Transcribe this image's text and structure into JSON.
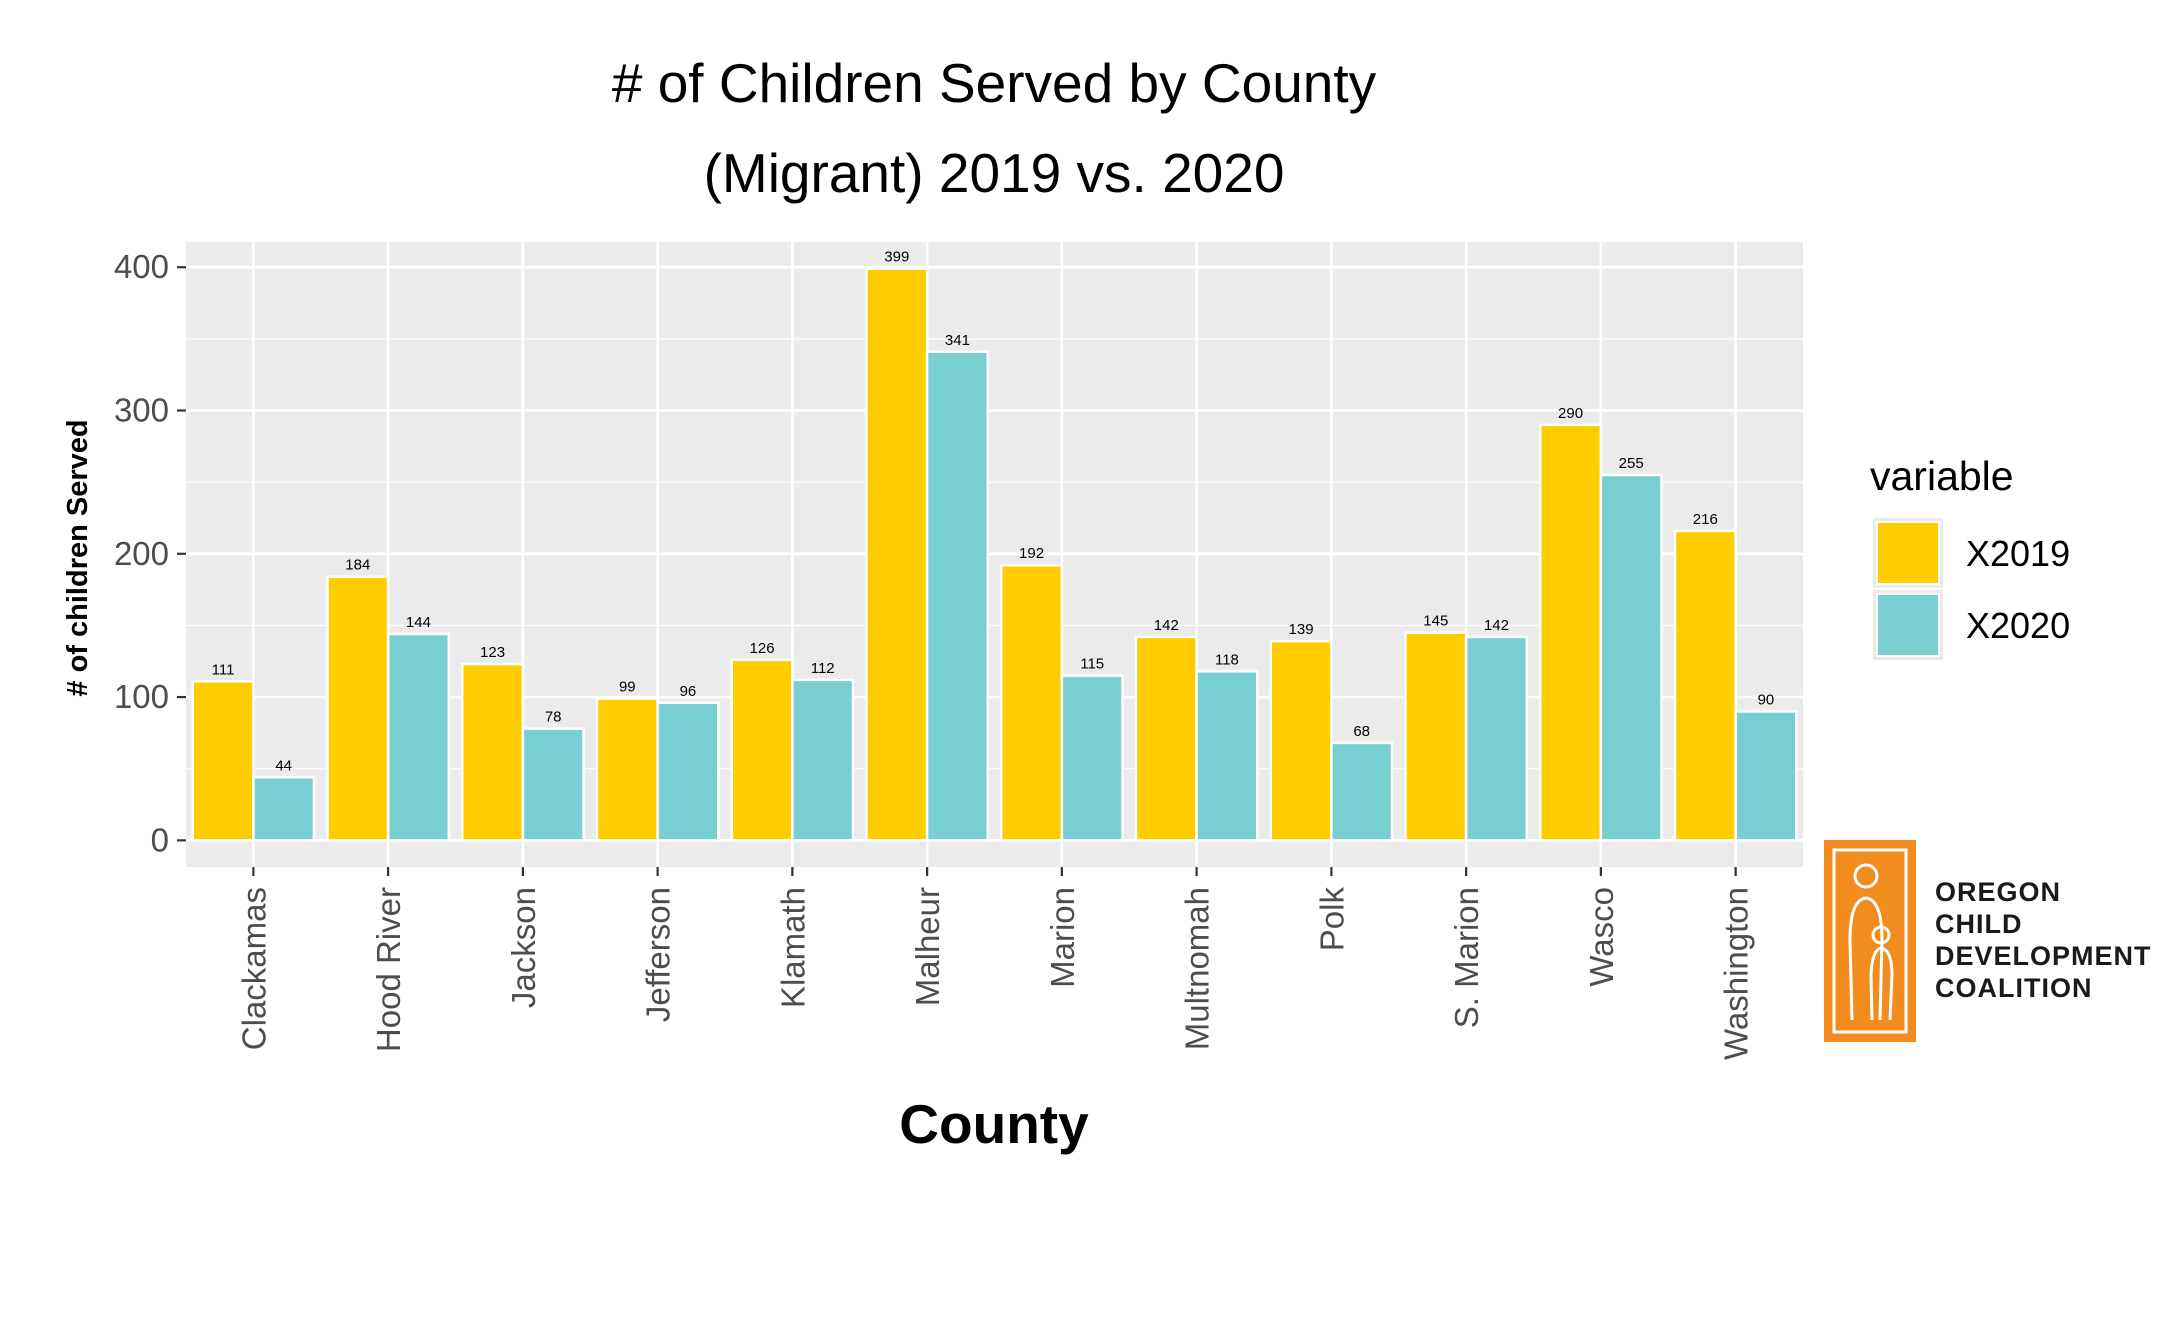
{
  "chart_data": {
    "type": "bar",
    "title_line1": "# of Children Served by County",
    "title_line2": "(Migrant) 2019 vs. 2020",
    "xlabel": "County",
    "ylabel": "# of children Served",
    "ylim": [
      0,
      420
    ],
    "yticks": [
      0,
      100,
      200,
      300,
      400
    ],
    "grid": true,
    "legend_position": "right",
    "legend_title": "variable",
    "categories": [
      "Clackamas",
      "Hood River",
      "Jackson",
      "Jefferson",
      "Klamath",
      "Malheur",
      "Marion",
      "Multnomah",
      "Polk",
      "S. Marion",
      "Wasco",
      "Washington"
    ],
    "series": [
      {
        "name": "X2019",
        "color": "#FFCC00",
        "values": [
          111,
          184,
          123,
          99,
          126,
          399,
          192,
          142,
          139,
          145,
          290,
          216
        ]
      },
      {
        "name": "X2020",
        "color": "#79CED1",
        "values": [
          44,
          144,
          78,
          96,
          112,
          341,
          115,
          118,
          68,
          142,
          255,
          90
        ]
      }
    ]
  },
  "logo": {
    "lines": [
      "OREGON",
      "CHILD",
      "DEVELOPMENT",
      "COALITION"
    ],
    "color": "#F28C1E"
  }
}
